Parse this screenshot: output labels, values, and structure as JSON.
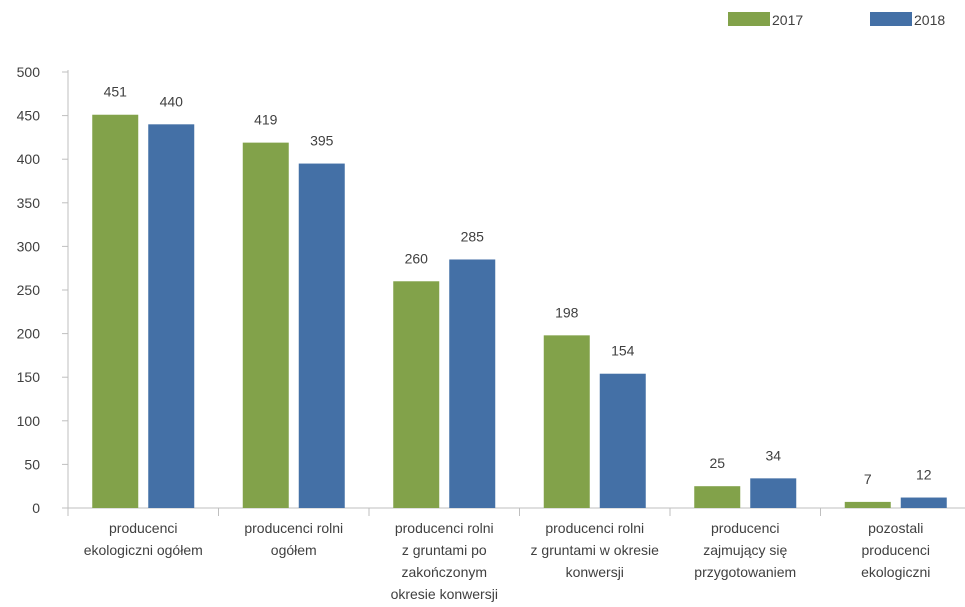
{
  "chart_data": {
    "type": "bar",
    "title": "",
    "xlabel": "",
    "ylabel": "",
    "ylim": [
      0,
      500
    ],
    "yticks": [
      0,
      50,
      100,
      150,
      200,
      250,
      300,
      350,
      400,
      450,
      500
    ],
    "grid": false,
    "legend_position": "top-right",
    "categories": [
      [
        "producenci",
        "ekologiczni ogółem"
      ],
      [
        "producenci rolni",
        "ogółem"
      ],
      [
        "producenci rolni",
        "z gruntami po",
        "zakończonym",
        "okresie konwersji"
      ],
      [
        "producenci rolni",
        "z gruntami w okresie",
        "konwersji"
      ],
      [
        "producenci",
        "zajmujący się",
        "przygotowaniem"
      ],
      [
        "pozostali",
        "producenci",
        "ekologiczni"
      ]
    ],
    "series": [
      {
        "name": "2017",
        "color": "#82A24A",
        "values": [
          451,
          419,
          260,
          198,
          25,
          7
        ]
      },
      {
        "name": "2018",
        "color": "#4470A6",
        "values": [
          440,
          395,
          285,
          154,
          34,
          12
        ]
      }
    ]
  }
}
